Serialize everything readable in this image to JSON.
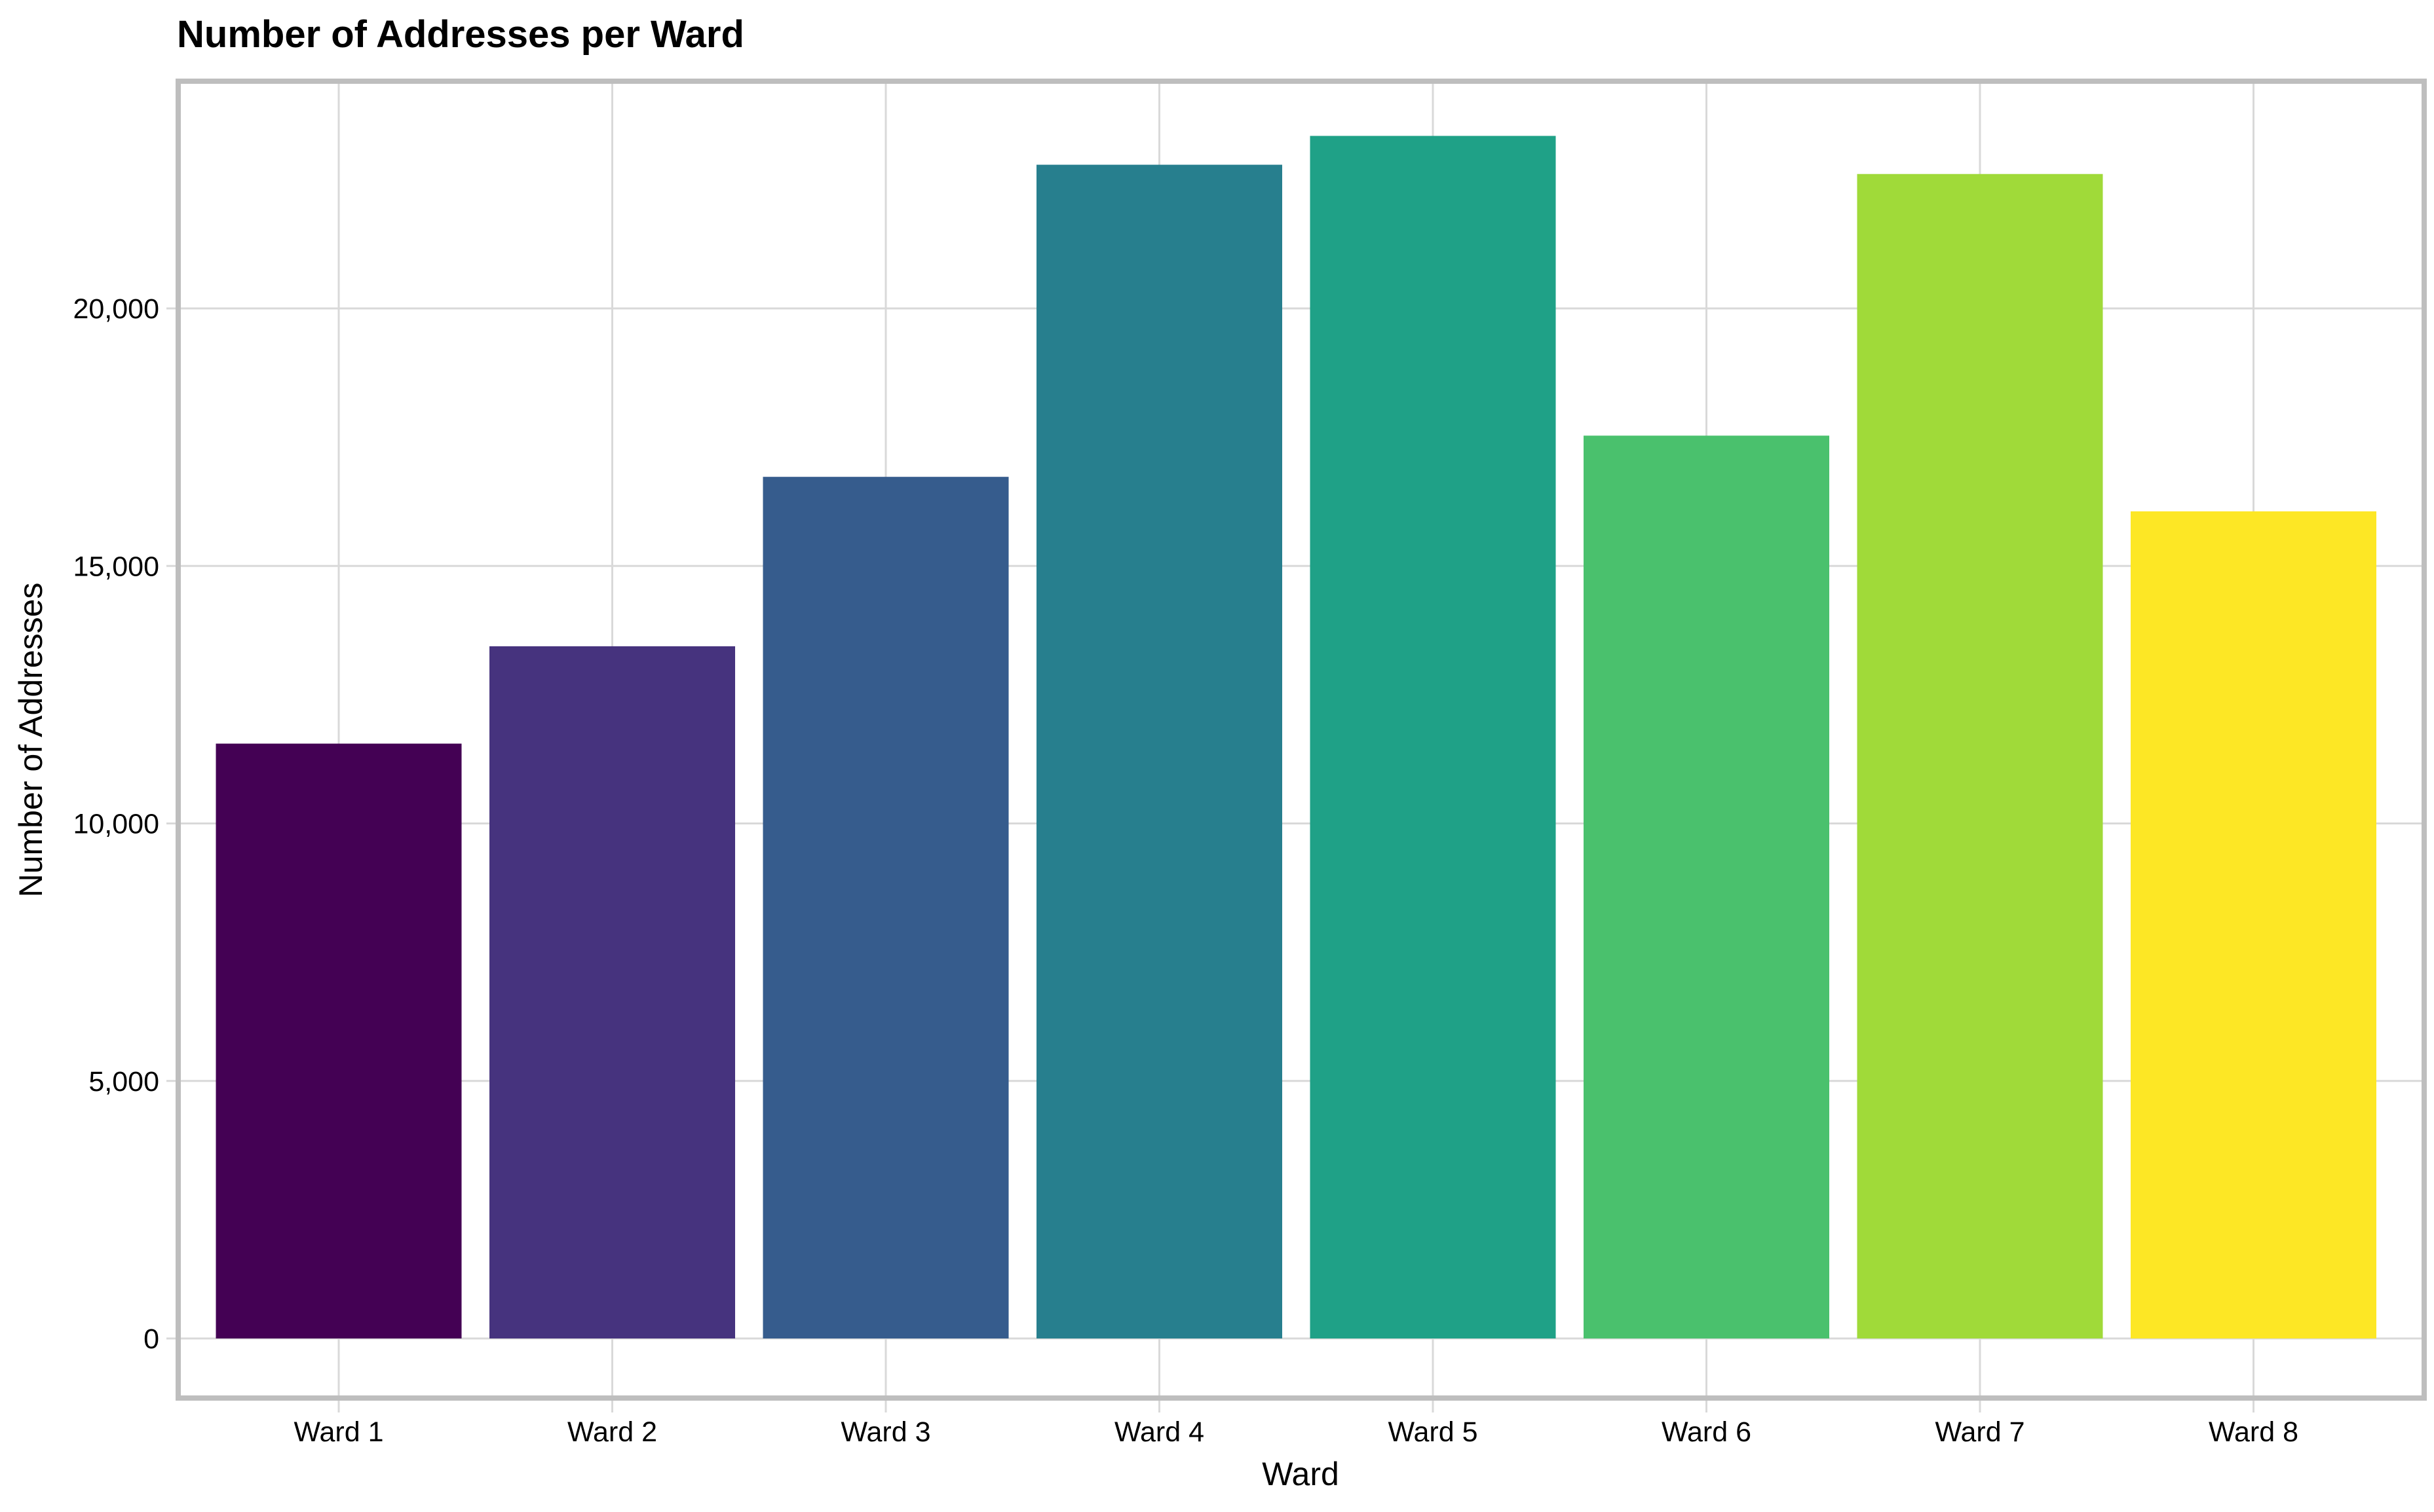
{
  "chart_data": {
    "type": "bar",
    "title": "Number of Addresses per Ward",
    "xlabel": "Ward",
    "ylabel": "Number of Addresses",
    "categories": [
      "Ward 1",
      "Ward 2",
      "Ward 3",
      "Ward 4",
      "Ward 5",
      "Ward 6",
      "Ward 7",
      "Ward 8"
    ],
    "values": [
      11550,
      13440,
      16730,
      22790,
      23350,
      17530,
      22610,
      16060
    ],
    "colors": [
      "#440154",
      "#46337E",
      "#365C8D",
      "#277F8E",
      "#1FA187",
      "#4AC16D",
      "#A0DA39",
      "#FDE725"
    ],
    "ylim": [
      0,
      25000
    ],
    "yticks": [
      0,
      5000,
      10000,
      15000,
      20000
    ],
    "ytick_labels": [
      "0",
      "5,000",
      "10,000",
      "15,000",
      "20,000"
    ],
    "grid": true,
    "legend": "none",
    "frame_color": "#BEBEBE",
    "grid_color": "#D9D9D9"
  }
}
